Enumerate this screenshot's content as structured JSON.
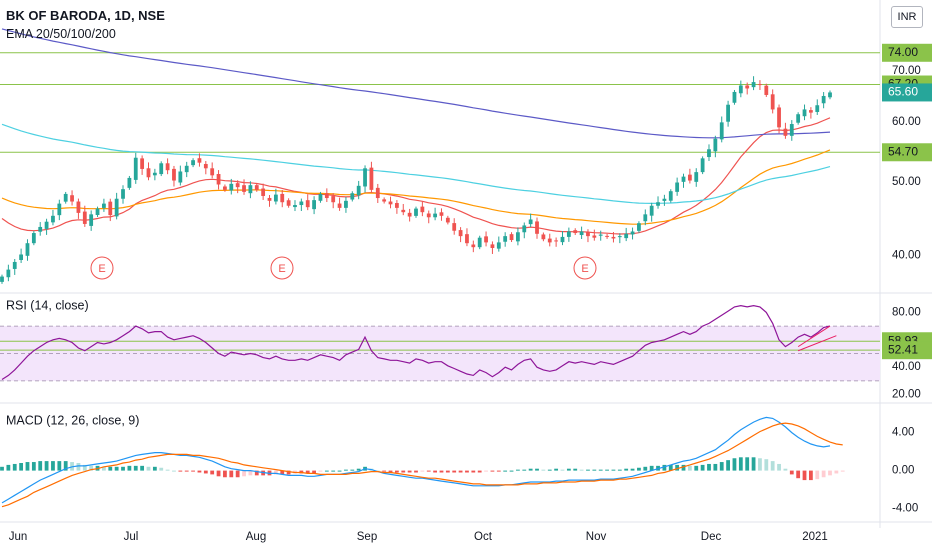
{
  "header": {
    "title": "BK OF BARODA, 1D, NSE",
    "subtitle": "EMA 20/50/100/200",
    "currency": "INR"
  },
  "colors": {
    "up": "#26a69a",
    "down": "#ef5350",
    "ema20": "#ef5350",
    "ema50": "#ff9800",
    "ema100": "#4dd0e1",
    "ema200": "#5c5ac7",
    "hline": "#8bc34a",
    "rsi": "#8e1599",
    "rsi_band": "#f3e5fb",
    "macd": "#2196f3",
    "signal": "#ff6d00",
    "trend": "#e91e63"
  },
  "chart_data": [
    {
      "type": "candlestick",
      "title": "BK OF BARODA, 1D, NSE",
      "subtitle": "EMA 20/50/100/200",
      "x_ticks": [
        "Jun",
        "Jul",
        "Aug",
        "Sep",
        "Oct",
        "Nov",
        "Dec",
        "2021"
      ],
      "y_ticks": [
        40,
        50,
        60,
        70
      ],
      "ylim": [
        36,
        76
      ],
      "y_scale": "log",
      "price_tags": [
        {
          "value": 74.0,
          "label": "74.00"
        },
        {
          "value": 67.2,
          "label": "67.20"
        },
        {
          "value": 65.6,
          "label": "65.60",
          "current": true
        },
        {
          "value": 54.7,
          "label": "54.70"
        }
      ],
      "horizontal_lines": [
        74.0,
        67.2,
        54.7
      ],
      "earnings_markers": [
        "E",
        "E",
        "E"
      ],
      "close_series": [
        37.5,
        38.3,
        39.2,
        40.1,
        41.5,
        42.8,
        43.6,
        44.3,
        45.1,
        46.8,
        48.2,
        47.1,
        45.5,
        44.0,
        45.3,
        46.1,
        46.8,
        45.2,
        47.5,
        48.9,
        50.6,
        53.8,
        52.0,
        50.7,
        51.4,
        52.9,
        51.8,
        50.2,
        51.6,
        52.5,
        53.4,
        53.0,
        52.1,
        51.0,
        49.6,
        48.8,
        49.7,
        49.2,
        48.5,
        49.5,
        48.8,
        47.9,
        47.2,
        48.1,
        47.0,
        46.5,
        46.6,
        47.1,
        46.3,
        47.3,
        48.2,
        47.6,
        47.0,
        46.2,
        47.2,
        48.3,
        49.4,
        52.1,
        48.8,
        47.6,
        47.1,
        46.7,
        46.2,
        45.6,
        45.0,
        46.1,
        45.6,
        44.9,
        45.4,
        45.1,
        44.2,
        43.1,
        42.4,
        41.5,
        41.0,
        42.2,
        41.6,
        40.9,
        41.6,
        42.4,
        41.9,
        42.9,
        43.8,
        44.6,
        42.7,
        42.0,
        41.6,
        41.8,
        42.3,
        43.0,
        42.8,
        43.0,
        42.4,
        42.2,
        42.6,
        42.3,
        42.1,
        42.4,
        42.7,
        43.0,
        44.1,
        45.3,
        46.5,
        47.0,
        47.5,
        48.6,
        49.9,
        50.8,
        50.2,
        51.5,
        53.7,
        55.2,
        57.0,
        59.9,
        63.2,
        65.7,
        67.0,
        66.4,
        67.7,
        67.1,
        65.1,
        62.3,
        59.0,
        57.5,
        59.6,
        61.4,
        62.3,
        61.7,
        63.1,
        64.9,
        65.6
      ]
    },
    {
      "type": "line",
      "title": "RSI (14, close)",
      "y_ticks": [
        20,
        40,
        80
      ],
      "ylim": [
        16,
        92
      ],
      "band": [
        30,
        70
      ],
      "current_tags": [
        {
          "value": 58.93,
          "label": "58.93"
        },
        {
          "value": 52.41,
          "label": "52.41"
        }
      ],
      "series": [
        {
          "values": [
            31,
            34,
            38,
            43,
            48,
            52,
            55,
            58,
            60,
            61,
            60,
            58,
            54,
            52,
            55,
            58,
            57,
            58,
            60,
            63,
            66,
            70,
            68,
            65,
            66,
            66,
            62,
            60,
            61,
            62,
            63,
            61,
            58,
            54,
            50,
            48,
            51,
            50,
            49,
            50,
            49,
            47,
            46,
            48,
            46,
            45,
            45,
            46,
            45,
            47,
            49,
            48,
            47,
            45,
            49,
            51,
            53,
            62,
            52,
            47,
            46,
            45,
            45,
            44,
            43,
            46,
            45,
            43,
            44,
            44,
            41,
            39,
            37,
            35,
            34,
            38,
            36,
            33,
            36,
            40,
            38,
            42,
            45,
            46,
            40,
            38,
            37,
            38,
            41,
            44,
            43,
            44,
            43,
            42,
            44,
            43,
            42,
            44,
            46,
            48,
            52,
            56,
            58,
            59,
            60,
            62,
            64,
            66,
            64,
            66,
            70,
            72,
            75,
            78,
            81,
            84,
            85,
            84,
            85,
            84,
            80,
            72,
            60,
            55,
            58,
            62,
            64,
            62,
            65,
            69,
            70
          ]
        }
      ]
    },
    {
      "type": "bar+line",
      "title": "MACD (12, 26, close, 9)",
      "y_ticks": [
        -4,
        0,
        4
      ],
      "ylim": [
        -5.2,
        6.8
      ],
      "series": [
        {
          "values": [
            -3.4,
            -3.0,
            -2.6,
            -2.2,
            -1.8,
            -1.4,
            -1.0,
            -0.7,
            -0.4,
            -0.1,
            0.2,
            0.4,
            0.5,
            0.5,
            0.6,
            0.7,
            0.8,
            0.9,
            1.0,
            1.2,
            1.4,
            1.6,
            1.7,
            1.8,
            1.9,
            1.9,
            1.8,
            1.7,
            1.6,
            1.6,
            1.5,
            1.4,
            1.2,
            1.0,
            0.7,
            0.4,
            0.2,
            0.1,
            0.0,
            0.0,
            -0.1,
            -0.2,
            -0.3,
            -0.3,
            -0.4,
            -0.5,
            -0.5,
            -0.5,
            -0.6,
            -0.6,
            -0.5,
            -0.4,
            -0.4,
            -0.4,
            -0.3,
            -0.2,
            -0.1,
            0.2,
            0.1,
            -0.1,
            -0.3,
            -0.4,
            -0.5,
            -0.6,
            -0.7,
            -0.8,
            -0.8,
            -0.9,
            -1.0,
            -1.1,
            -1.2,
            -1.3,
            -1.4,
            -1.5,
            -1.6,
            -1.6,
            -1.6,
            -1.6,
            -1.6,
            -1.5,
            -1.5,
            -1.4,
            -1.3,
            -1.2,
            -1.2,
            -1.2,
            -1.2,
            -1.1,
            -1.1,
            -1.0,
            -1.0,
            -1.0,
            -1.0,
            -1.0,
            -0.9,
            -0.9,
            -0.9,
            -0.8,
            -0.7,
            -0.6,
            -0.4,
            -0.2,
            0.0,
            0.2,
            0.4,
            0.6,
            0.8,
            1.0,
            1.1,
            1.3,
            1.6,
            1.9,
            2.2,
            2.7,
            3.2,
            3.8,
            4.3,
            4.7,
            5.1,
            5.4,
            5.6,
            5.5,
            5.1,
            4.6,
            4.0,
            3.5,
            3.1,
            2.8,
            2.6,
            2.5,
            2.6
          ]
        },
        {
          "values": [
            -3.8,
            -3.6,
            -3.3,
            -3.0,
            -2.7,
            -2.3,
            -2.0,
            -1.7,
            -1.4,
            -1.1,
            -0.8,
            -0.5,
            -0.3,
            -0.1,
            0.1,
            0.2,
            0.4,
            0.5,
            0.6,
            0.8,
            0.9,
            1.1,
            1.2,
            1.4,
            1.5,
            1.6,
            1.7,
            1.7,
            1.7,
            1.7,
            1.6,
            1.6,
            1.5,
            1.4,
            1.3,
            1.1,
            0.9,
            0.8,
            0.6,
            0.5,
            0.4,
            0.3,
            0.2,
            0.1,
            0.0,
            -0.1,
            -0.2,
            -0.2,
            -0.3,
            -0.3,
            -0.4,
            -0.4,
            -0.4,
            -0.4,
            -0.4,
            -0.3,
            -0.3,
            -0.2,
            -0.1,
            -0.1,
            -0.2,
            -0.2,
            -0.3,
            -0.4,
            -0.5,
            -0.6,
            -0.7,
            -0.8,
            -0.8,
            -0.9,
            -1.0,
            -1.1,
            -1.2,
            -1.3,
            -1.4,
            -1.4,
            -1.5,
            -1.5,
            -1.5,
            -1.5,
            -1.5,
            -1.5,
            -1.4,
            -1.4,
            -1.4,
            -1.3,
            -1.3,
            -1.3,
            -1.2,
            -1.2,
            -1.2,
            -1.1,
            -1.1,
            -1.1,
            -1.0,
            -1.0,
            -1.0,
            -0.9,
            -0.9,
            -0.8,
            -0.7,
            -0.6,
            -0.5,
            -0.3,
            -0.2,
            0.0,
            0.2,
            0.4,
            0.6,
            0.8,
            1.0,
            1.2,
            1.5,
            1.8,
            2.1,
            2.5,
            2.9,
            3.3,
            3.7,
            4.1,
            4.4,
            4.7,
            4.9,
            5.0,
            4.9,
            4.7,
            4.4,
            4.0,
            3.6,
            3.3,
            3.0,
            2.8,
            2.7
          ]
        }
      ],
      "histogram": [
        0.4,
        0.6,
        0.7,
        0.8,
        0.9,
        0.9,
        1.0,
        1.0,
        1.0,
        1.0,
        1.0,
        0.9,
        0.8,
        0.6,
        0.5,
        0.5,
        0.4,
        0.4,
        0.4,
        0.4,
        0.5,
        0.5,
        0.5,
        0.4,
        0.4,
        0.3,
        0.1,
        0.0,
        -0.1,
        -0.1,
        -0.1,
        -0.2,
        -0.3,
        -0.4,
        -0.6,
        -0.7,
        -0.7,
        -0.7,
        -0.6,
        -0.5,
        -0.5,
        -0.5,
        -0.5,
        -0.4,
        -0.4,
        -0.4,
        -0.3,
        -0.3,
        -0.3,
        -0.3,
        -0.1,
        0.0,
        0.0,
        0.0,
        0.1,
        0.1,
        0.2,
        0.4,
        0.2,
        0.0,
        -0.1,
        -0.2,
        -0.2,
        -0.2,
        -0.2,
        -0.2,
        -0.1,
        -0.1,
        -0.2,
        -0.2,
        -0.2,
        -0.2,
        -0.2,
        -0.2,
        -0.2,
        -0.2,
        -0.1,
        -0.1,
        -0.1,
        0.0,
        0.0,
        0.1,
        0.1,
        0.2,
        0.2,
        0.1,
        0.1,
        0.2,
        0.1,
        0.2,
        0.2,
        0.1,
        0.1,
        0.1,
        0.1,
        0.1,
        0.1,
        0.1,
        0.2,
        0.2,
        0.3,
        0.4,
        0.5,
        0.5,
        0.6,
        0.6,
        0.6,
        0.6,
        0.5,
        0.5,
        0.6,
        0.7,
        0.7,
        0.9,
        1.1,
        1.3,
        1.4,
        1.4,
        1.4,
        1.3,
        1.2,
        1.0,
        0.7,
        0.2,
        -0.4,
        -0.8,
        -1.0,
        -1.0,
        -0.9,
        -0.7,
        -0.5,
        -0.3,
        -0.1
      ]
    }
  ]
}
